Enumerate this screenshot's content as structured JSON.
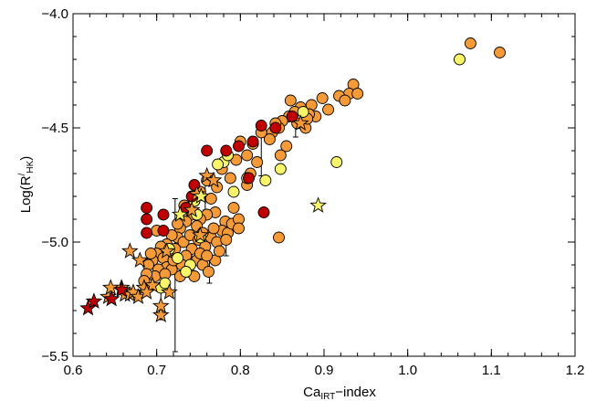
{
  "chart_data": {
    "type": "scatter",
    "title": "",
    "xlabel": {
      "main": "Ca",
      "sub": "IRT",
      "rest": "−index"
    },
    "ylabel": {
      "prefix": "Log(R",
      "sup": "/",
      "sub": "HK",
      "suffix": ")"
    },
    "xlim": [
      0.6,
      1.2
    ],
    "ylim": [
      -5.5,
      -4.0
    ],
    "xticks": [
      0.6,
      0.7,
      0.8,
      0.9,
      1.0,
      1.1,
      1.2
    ],
    "xtick_labels": [
      "0.6",
      "0.7",
      "0.8",
      "0.9",
      "1.0",
      "1.1",
      "1.2"
    ],
    "yticks": [
      -5.5,
      -5.0,
      -4.5,
      -4.0
    ],
    "ytick_labels": [
      "−5.5",
      "−5.0",
      "−4.5",
      "−4.0"
    ],
    "colors": {
      "orange": "#f59a38",
      "yellow": "#f8f56a",
      "red": "#c00000",
      "outline": "#000000"
    },
    "grid": false,
    "error_bars": [
      {
        "x": 0.722,
        "y": -5.02,
        "ylow": -5.48,
        "yhigh": -4.81
      },
      {
        "x": 0.705,
        "y": -5.3,
        "ylow": -5.34,
        "yhigh": -5.2
      },
      {
        "x": 0.763,
        "y": -5.13,
        "ylow": -5.18,
        "yhigh": -5.05
      },
      {
        "x": 0.742,
        "y": -5.08,
        "ylow": -5.13,
        "yhigh": -5.02
      },
      {
        "x": 0.825,
        "y": -4.58,
        "ylow": -4.71,
        "yhigh": -4.53
      },
      {
        "x": 0.783,
        "y": -5.02,
        "ylow": -5.06,
        "yhigh": -4.95
      },
      {
        "x": 0.758,
        "y": -4.82,
        "ylow": -4.86,
        "yhigh": -4.74
      },
      {
        "x": 0.866,
        "y": -4.5,
        "ylow": -4.54,
        "yhigh": -4.45
      }
    ],
    "series": [
      {
        "marker": "circle",
        "color": "orange",
        "points": [
          [
            1.075,
            -4.13
          ],
          [
            1.11,
            -4.17
          ],
          [
            0.935,
            -4.31
          ],
          [
            0.93,
            -4.35
          ],
          [
            0.94,
            -4.35
          ],
          [
            0.918,
            -4.36
          ],
          [
            0.925,
            -4.38
          ],
          [
            0.898,
            -4.37
          ],
          [
            0.905,
            -4.42
          ],
          [
            0.885,
            -4.4
          ],
          [
            0.89,
            -4.45
          ],
          [
            0.872,
            -4.41
          ],
          [
            0.882,
            -4.44
          ],
          [
            0.865,
            -4.43
          ],
          [
            0.858,
            -4.45
          ],
          [
            0.85,
            -4.47
          ],
          [
            0.868,
            -4.48
          ],
          [
            0.878,
            -4.5
          ],
          [
            0.846,
            -4.5
          ],
          [
            0.838,
            -4.52
          ],
          [
            0.86,
            -4.38
          ],
          [
            0.842,
            -4.48
          ],
          [
            0.855,
            -4.58
          ],
          [
            0.848,
            -4.62
          ],
          [
            0.835,
            -4.55
          ],
          [
            0.815,
            -4.57
          ],
          [
            0.808,
            -4.62
          ],
          [
            0.8,
            -4.56
          ],
          [
            0.82,
            -4.65
          ],
          [
            0.812,
            -4.7
          ],
          [
            0.795,
            -4.64
          ],
          [
            0.788,
            -4.72
          ],
          [
            0.778,
            -4.68
          ],
          [
            0.772,
            -4.76
          ],
          [
            0.76,
            -4.73
          ],
          [
            0.752,
            -4.78
          ],
          [
            0.745,
            -4.82
          ],
          [
            0.738,
            -4.85
          ],
          [
            0.765,
            -4.81
          ],
          [
            0.77,
            -4.87
          ],
          [
            0.782,
            -4.91
          ],
          [
            0.792,
            -4.85
          ],
          [
            0.76,
            -4.88
          ],
          [
            0.752,
            -4.9
          ],
          [
            0.748,
            -4.93
          ],
          [
            0.742,
            -4.88
          ],
          [
            0.735,
            -4.91
          ],
          [
            0.728,
            -4.94
          ],
          [
            0.725,
            -4.98
          ],
          [
            0.732,
            -5.0
          ],
          [
            0.718,
            -4.97
          ],
          [
            0.712,
            -5.01
          ],
          [
            0.705,
            -5.02
          ],
          [
            0.7,
            -5.05
          ],
          [
            0.695,
            -5.08
          ],
          [
            0.69,
            -5.1
          ],
          [
            0.715,
            -5.05
          ],
          [
            0.722,
            -5.03
          ],
          [
            0.708,
            -5.07
          ],
          [
            0.712,
            -5.11
          ],
          [
            0.702,
            -5.12
          ],
          [
            0.698,
            -5.15
          ],
          [
            0.688,
            -5.14
          ],
          [
            0.685,
            -5.17
          ],
          [
            0.74,
            -4.97
          ],
          [
            0.75,
            -4.99
          ],
          [
            0.758,
            -5.02
          ],
          [
            0.765,
            -4.98
          ],
          [
            0.772,
            -5.0
          ],
          [
            0.778,
            -4.95
          ],
          [
            0.785,
            -4.96
          ],
          [
            0.79,
            -4.92
          ],
          [
            0.798,
            -4.9
          ],
          [
            0.742,
            -5.03
          ],
          [
            0.735,
            -5.06
          ],
          [
            0.748,
            -5.08
          ],
          [
            0.755,
            -5.1
          ],
          [
            0.762,
            -5.13
          ],
          [
            0.77,
            -5.08
          ],
          [
            0.752,
            -5.05
          ],
          [
            0.73,
            -5.1
          ],
          [
            0.738,
            -5.13
          ],
          [
            0.728,
            -5.15
          ],
          [
            0.718,
            -5.12
          ],
          [
            0.745,
            -5.15
          ],
          [
            0.76,
            -5.06
          ],
          [
            0.775,
            -5.04
          ],
          [
            0.768,
            -4.94
          ],
          [
            0.808,
            -4.75
          ],
          [
            0.846,
            -4.98
          ],
          [
            0.7,
            -4.95
          ],
          [
            0.693,
            -5.05
          ],
          [
            0.825,
            -4.52
          ],
          [
            0.88,
            -4.46
          ],
          [
            0.725,
            -4.92
          ],
          [
            0.733,
            -4.84
          ],
          [
            0.755,
            -4.96
          ],
          [
            0.783,
            -4.99
          ],
          [
            0.798,
            -4.94
          ],
          [
            0.71,
            -5.14
          ],
          [
            0.72,
            -5.08
          ]
        ]
      },
      {
        "marker": "circle",
        "color": "yellow",
        "points": [
          [
            1.062,
            -4.2
          ],
          [
            0.875,
            -4.43
          ],
          [
            0.915,
            -4.65
          ],
          [
            0.848,
            -4.68
          ],
          [
            0.83,
            -4.73
          ],
          [
            0.808,
            -4.72
          ],
          [
            0.792,
            -4.78
          ],
          [
            0.78,
            -4.65
          ],
          [
            0.785,
            -4.62
          ],
          [
            0.773,
            -4.66
          ],
          [
            0.748,
            -4.88
          ],
          [
            0.745,
            -4.82
          ],
          [
            0.715,
            -5.03
          ],
          [
            0.752,
            -4.98
          ],
          [
            0.725,
            -5.07
          ],
          [
            0.705,
            -5.2
          ],
          [
            0.71,
            -5.18
          ],
          [
            0.74,
            -5.1
          ],
          [
            0.735,
            -5.13
          ]
        ]
      },
      {
        "marker": "circle",
        "color": "red",
        "points": [
          [
            0.825,
            -4.49
          ],
          [
            0.862,
            -4.45
          ],
          [
            0.842,
            -4.5
          ],
          [
            0.815,
            -4.56
          ],
          [
            0.798,
            -4.58
          ],
          [
            0.783,
            -4.6
          ],
          [
            0.76,
            -4.6
          ],
          [
            0.745,
            -4.75
          ],
          [
            0.742,
            -4.8
          ],
          [
            0.735,
            -4.85
          ],
          [
            0.708,
            -4.88
          ],
          [
            0.708,
            -4.95
          ],
          [
            0.688,
            -4.85
          ],
          [
            0.688,
            -4.9
          ],
          [
            0.688,
            -4.96
          ],
          [
            0.828,
            -4.87
          ],
          [
            0.81,
            -4.72
          ]
        ]
      },
      {
        "marker": "star",
        "color": "orange",
        "points": [
          [
            0.658,
            -5.2
          ],
          [
            0.662,
            -5.23
          ],
          [
            0.668,
            -5.23
          ],
          [
            0.672,
            -5.22
          ],
          [
            0.678,
            -5.24
          ],
          [
            0.685,
            -5.2
          ],
          [
            0.695,
            -5.19
          ],
          [
            0.688,
            -5.22
          ],
          [
            0.705,
            -5.32
          ],
          [
            0.705,
            -5.28
          ],
          [
            0.715,
            -5.22
          ],
          [
            0.642,
            -5.24
          ],
          [
            0.645,
            -5.2
          ],
          [
            0.668,
            -5.04
          ],
          [
            0.68,
            -5.08
          ],
          [
            0.712,
            -5.04
          ],
          [
            0.742,
            -4.86
          ],
          [
            0.748,
            -4.79
          ],
          [
            0.76,
            -4.71
          ],
          [
            0.768,
            -4.73
          ],
          [
            0.752,
            -4.97
          ],
          [
            0.872,
            -4.48
          ]
        ]
      },
      {
        "marker": "star",
        "color": "yellow",
        "points": [
          [
            0.893,
            -4.84
          ],
          [
            0.753,
            -4.8
          ],
          [
            0.728,
            -4.88
          ]
        ]
      },
      {
        "marker": "star",
        "color": "red",
        "points": [
          [
            0.618,
            -5.29
          ],
          [
            0.625,
            -5.26
          ],
          [
            0.646,
            -5.25
          ],
          [
            0.658,
            -5.21
          ]
        ]
      }
    ]
  }
}
